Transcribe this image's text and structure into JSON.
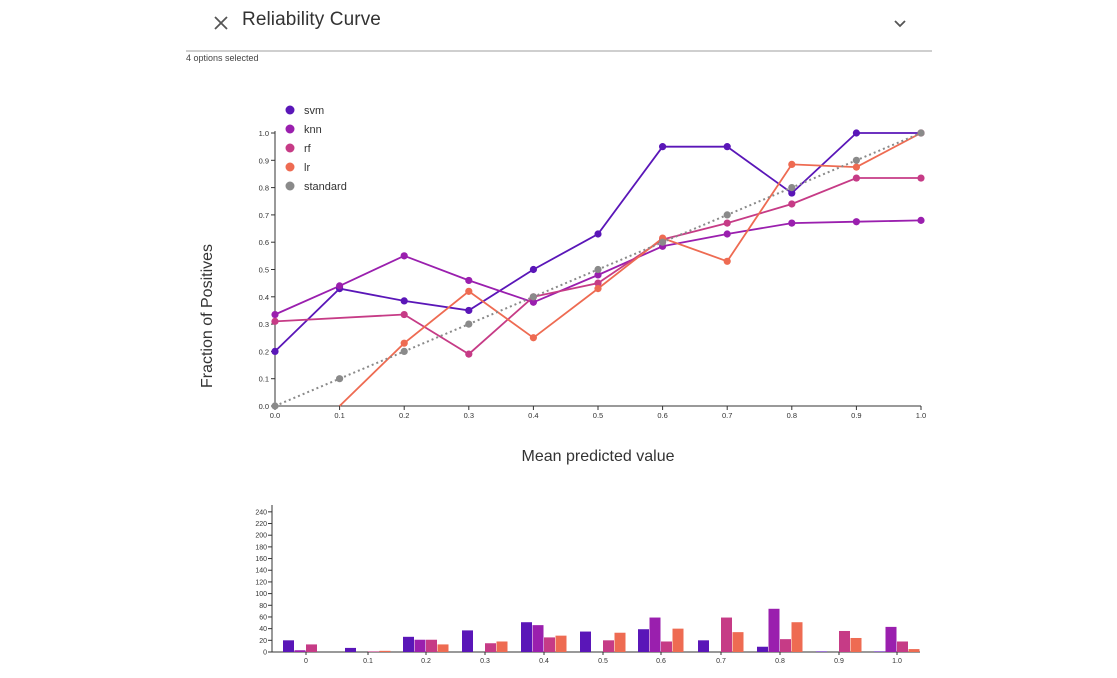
{
  "header": {
    "title": "Reliability Curve",
    "close_icon": "close-icon",
    "expand_icon": "chevron-down-icon",
    "selection_note": "4 options selected"
  },
  "colors": {
    "svm": "#5a16b8",
    "knn": "#9a1fae",
    "rf": "#c63b86",
    "lr": "#ee6b52",
    "standard": "#8a8a8a"
  },
  "chart_data": [
    {
      "type": "line",
      "title": "",
      "xlabel": "Mean predicted value",
      "ylabel": "Fraction of Positives",
      "xlim": [
        0,
        1
      ],
      "ylim": [
        0,
        1
      ],
      "x_ticks": [
        "0.0",
        "0.1",
        "0.2",
        "0.3",
        "0.4",
        "0.5",
        "0.6",
        "0.7",
        "0.8",
        "0.9",
        "1.0"
      ],
      "y_ticks": [
        "0.0",
        "0.1",
        "0.2",
        "0.3",
        "0.4",
        "0.5",
        "0.6",
        "0.7",
        "0.8",
        "0.9",
        "1.0"
      ],
      "grid": false,
      "legend": "top-left",
      "series": [
        {
          "name": "svm",
          "x": [
            0,
            0.1,
            0.2,
            0.3,
            0.4,
            0.5,
            0.6,
            0.7,
            0.8,
            0.9,
            1.0
          ],
          "y": [
            0.2,
            0.43,
            0.385,
            0.35,
            0.5,
            0.63,
            0.95,
            0.95,
            0.78,
            1.0,
            1.0
          ]
        },
        {
          "name": "knn",
          "x": [
            0,
            0.1,
            0.2,
            0.3,
            0.4,
            0.5,
            0.6,
            0.7,
            0.8,
            0.9,
            1.0
          ],
          "y": [
            0.335,
            0.44,
            0.55,
            0.46,
            0.38,
            0.48,
            0.585,
            0.63,
            0.67,
            0.675,
            0.68
          ]
        },
        {
          "name": "rf",
          "x": [
            0,
            0.2,
            0.3,
            0.4,
            0.5,
            0.6,
            0.7,
            0.8,
            0.9,
            1.0
          ],
          "y": [
            0.31,
            0.335,
            0.19,
            0.4,
            0.45,
            0.61,
            0.67,
            0.74,
            0.835,
            0.835
          ]
        },
        {
          "name": "lr",
          "x": [
            0.1,
            0.2,
            0.3,
            0.4,
            0.5,
            0.6,
            0.7,
            0.8,
            0.9,
            1.0
          ],
          "y": [
            0.0,
            0.23,
            0.42,
            0.25,
            0.43,
            0.615,
            0.53,
            0.885,
            0.875,
            1.0
          ]
        },
        {
          "name": "standard",
          "x": [
            0,
            0.1,
            0.2,
            0.3,
            0.4,
            0.5,
            0.6,
            0.7,
            0.8,
            0.9,
            1.0
          ],
          "y": [
            0,
            0.1,
            0.2,
            0.3,
            0.4,
            0.5,
            0.6,
            0.7,
            0.8,
            0.9,
            1.0
          ],
          "style": "dotted"
        }
      ]
    },
    {
      "type": "bar",
      "title": "",
      "categories": [
        "0",
        "0.1",
        "0.2",
        "0.3",
        "0.4",
        "0.5",
        "0.6",
        "0.7",
        "0.8",
        "0.9",
        "1.0"
      ],
      "ylim": [
        0,
        250
      ],
      "y_ticks": [
        "0",
        "20",
        "40",
        "60",
        "80",
        "100",
        "120",
        "140",
        "160",
        "180",
        "200",
        "220",
        "240"
      ],
      "series": [
        {
          "name": "svm",
          "values": [
            20,
            7,
            26,
            37,
            51,
            35,
            39,
            20,
            9,
            1,
            1
          ]
        },
        {
          "name": "knn",
          "values": [
            3,
            0,
            21,
            0,
            46,
            0,
            59,
            0,
            74,
            0,
            43
          ]
        },
        {
          "name": "rf",
          "values": [
            13,
            1,
            21,
            15,
            25,
            20,
            18,
            59,
            22,
            36,
            18
          ]
        },
        {
          "name": "lr",
          "values": [
            0,
            2,
            13,
            18,
            28,
            33,
            40,
            34,
            51,
            24,
            5
          ]
        }
      ]
    }
  ]
}
